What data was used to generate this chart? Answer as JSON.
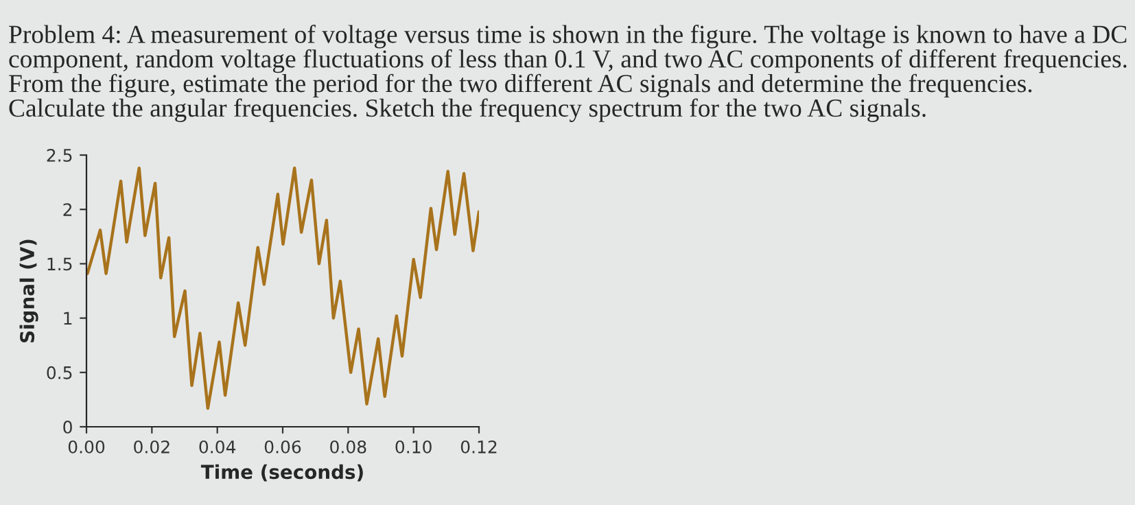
{
  "chart_data": {
    "type": "line",
    "title": "Problem 4: A measurement of voltage versus time is shown in the figure. The voltage is known to have a DC component, random voltage fluctuations of less than 0.1 V, and two AC components of different frequencies. From the figure, estimate the period for the two different AC signals and determine the frequencies. Calculate the angular frequencies. Sketch the frequency spectrum for the two AC signals.",
    "xlabel": "Time (seconds)",
    "ylabel": "Signal (V)",
    "x": [
      0.0003,
      0.0042,
      0.006,
      0.0105,
      0.0123,
      0.0161,
      0.0179,
      0.021,
      0.0227,
      0.0252,
      0.0269,
      0.0301,
      0.0322,
      0.0347,
      0.0371,
      0.0406,
      0.0424,
      0.0464,
      0.0485,
      0.0524,
      0.0543,
      0.0585,
      0.0601,
      0.0636,
      0.0657,
      0.0688,
      0.0711,
      0.0734,
      0.0755,
      0.0776,
      0.0808,
      0.0832,
      0.0857,
      0.0892,
      0.0912,
      0.0948,
      0.0965,
      0.1,
      0.1021,
      0.1053,
      0.107,
      0.1105,
      0.1126,
      0.1154,
      0.1182,
      0.12
    ],
    "series": [
      {
        "color": "#a8731c",
        "values": [
          1.41,
          1.81,
          1.41,
          2.26,
          1.7,
          2.38,
          1.76,
          2.24,
          1.37,
          1.74,
          0.83,
          1.25,
          0.38,
          0.86,
          0.17,
          0.78,
          0.29,
          1.14,
          0.75,
          1.65,
          1.31,
          2.14,
          1.68,
          2.38,
          1.79,
          2.27,
          1.5,
          1.9,
          1.0,
          1.34,
          0.5,
          0.9,
          0.21,
          0.81,
          0.28,
          1.02,
          0.65,
          1.54,
          1.19,
          2.01,
          1.63,
          2.35,
          1.77,
          2.33,
          1.62,
          1.98
        ]
      }
    ],
    "xlim": [
      0,
      0.12
    ],
    "xticks": [
      {
        "value": 0,
        "label": "0.00"
      },
      {
        "value": 0.02,
        "label": "0.02"
      },
      {
        "value": 0.04,
        "label": "0.04"
      },
      {
        "value": 0.06,
        "label": "0.06"
      },
      {
        "value": 0.08,
        "label": "0.08"
      },
      {
        "value": 0.1,
        "label": "0.10"
      },
      {
        "value": 0.12,
        "label": "0.12"
      }
    ],
    "ylim": [
      0,
      2.5
    ],
    "yticks": [
      0,
      0.5,
      1,
      1.5,
      2,
      2.5
    ],
    "grid": false,
    "legend": false
  }
}
